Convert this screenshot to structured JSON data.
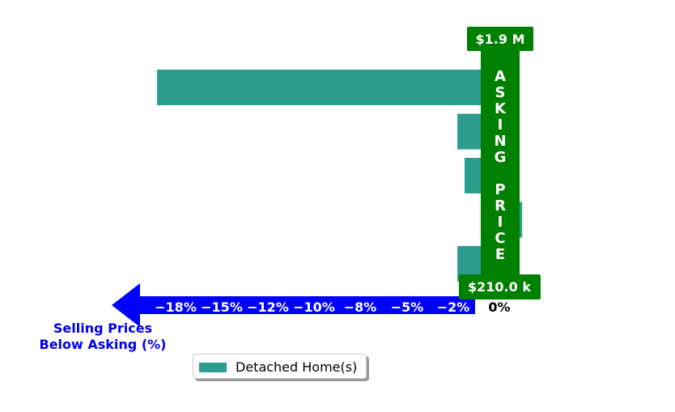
{
  "chart_data": {
    "type": "bar",
    "orientation": "horizontal",
    "series": [
      {
        "name": "Detached Home(s)",
        "values": [
          -18.0,
          -1.3,
          -0.9,
          2.3,
          -1.3
        ]
      }
    ],
    "xlabel": "Selling Prices\nBelow Asking (%)",
    "xticks": [
      "−18%",
      "−15%",
      "−12%",
      "−10%",
      "−8%",
      "−5%",
      "−2%",
      "0%"
    ],
    "xlim": [
      -20,
      2.5
    ],
    "asking_price_label": "ASKING PRICE",
    "price_high": "$1.9 M",
    "price_low": "$210.0 k",
    "legend_position": "bottom-left",
    "grid": false
  },
  "colors": {
    "bar": "#2a9d8f",
    "asking_band": "#008000",
    "arrow": "#0000ff",
    "axis_title": "#0000ee"
  }
}
